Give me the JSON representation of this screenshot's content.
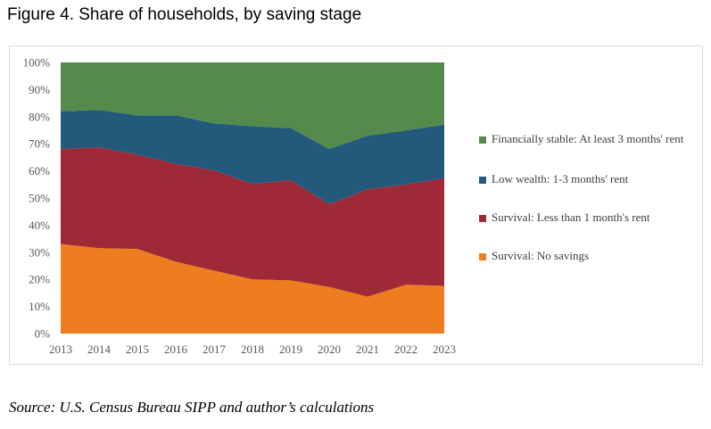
{
  "title": "Figure 4. Share of households, by saving stage",
  "source": "Source: U.S. Census Bureau SIPP and author’s calculations",
  "chart_data": {
    "type": "area",
    "stacked": true,
    "x": [
      "2013",
      "2014",
      "2015",
      "2016",
      "2017",
      "2018",
      "2019",
      "2020",
      "2021",
      "2022",
      "2023"
    ],
    "ylim": [
      0,
      100
    ],
    "y_ticks": [
      "0%",
      "10%",
      "20%",
      "30%",
      "40%",
      "50%",
      "60%",
      "70%",
      "80%",
      "90%",
      "100%"
    ],
    "series": [
      {
        "name": "Survival: No savings",
        "color": "#ed7d1f",
        "values": [
          33,
          31.5,
          31.2,
          26.5,
          23.2,
          20,
          19.6,
          17.2,
          13.6,
          18,
          17.6
        ]
      },
      {
        "name": "Survival: Less than 1 month's  rent",
        "color": "#9e2a38",
        "values": [
          35,
          37.2,
          34.8,
          36.1,
          37,
          35.2,
          37,
          30.5,
          39.6,
          37,
          39.7
        ]
      },
      {
        "name": "Low wealth: 1-3 months' rent",
        "color": "#235a7c",
        "values": [
          14,
          13.8,
          14.5,
          17.9,
          17.3,
          21.3,
          19.2,
          20.4,
          19.8,
          19.9,
          19.8
        ]
      },
      {
        "name": "Financially stable: At least 3 months' rent",
        "color": "#548a4c",
        "values": [
          18,
          17.5,
          19.5,
          19.5,
          22.5,
          23.5,
          24.2,
          31.9,
          27,
          25.1,
          22.9
        ]
      }
    ],
    "legend_order": [
      3,
      2,
      1,
      0
    ],
    "legend_position": "right",
    "grid": false
  }
}
